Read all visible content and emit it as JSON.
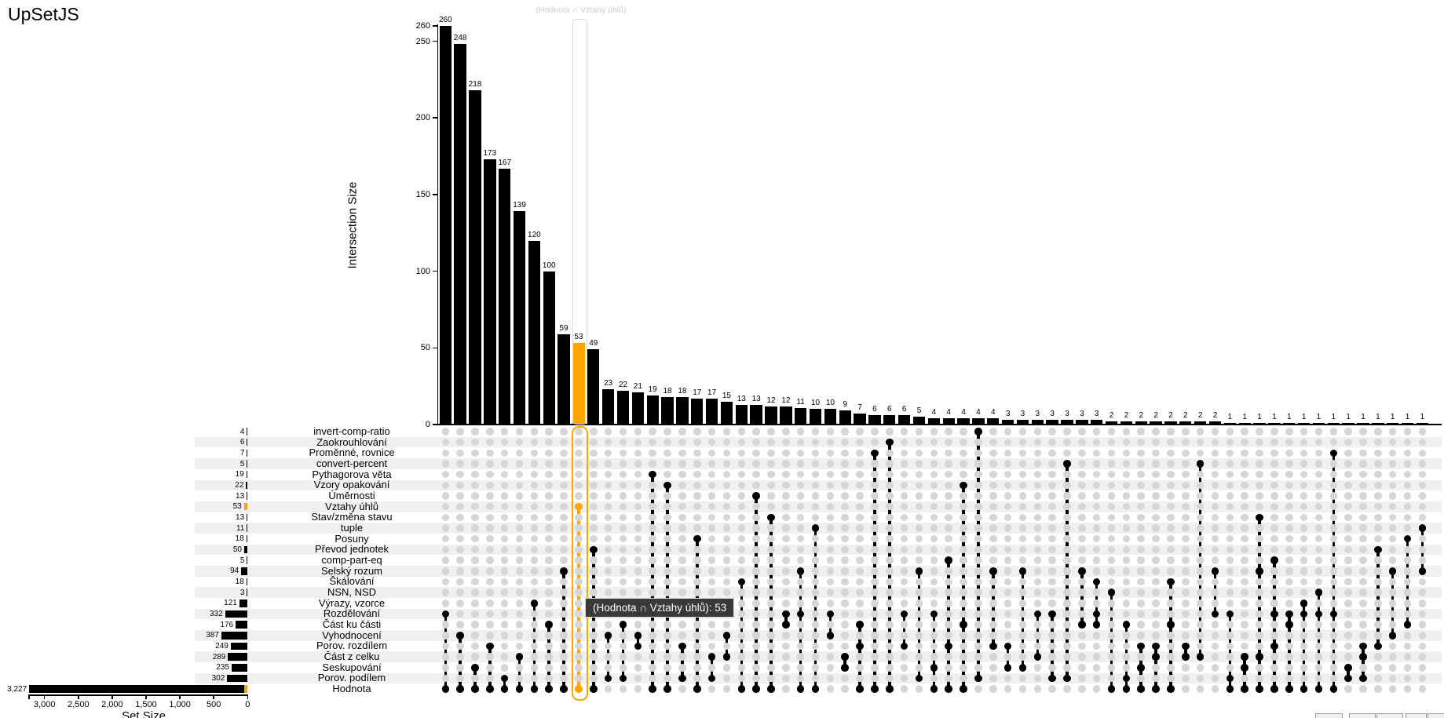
{
  "app": {
    "title": "UpSetJS"
  },
  "accent_color": "#ffa500",
  "bar_color": "#000000",
  "dot_color": "#d6d6d6",
  "chart_data": {
    "type": "upset",
    "hover_label": "(Hodnota ∩ Vztahy úhlů)",
    "tooltip": "(Hodnota ∩ Vztahy úhlů): 53",
    "intersection_axis": {
      "label": "Intersection Size",
      "ticks": [
        0,
        50,
        100,
        150,
        200,
        250,
        260
      ],
      "max": 260
    },
    "set_axis": {
      "label": "Set Size",
      "tick_labels": [
        "3,000",
        "2,500",
        "2,000",
        "1,500",
        "1,000",
        "500",
        "0"
      ],
      "tick_values": [
        3000,
        2500,
        2000,
        1500,
        1000,
        500,
        0
      ],
      "max": 3227
    },
    "sets": [
      {
        "name": "invert-comp-ratio",
        "size": 4,
        "label": "4"
      },
      {
        "name": "Zaokrouhlování",
        "size": 6,
        "label": "6"
      },
      {
        "name": "Proměnné, rovnice",
        "size": 7,
        "label": "7"
      },
      {
        "name": "convert-percent",
        "size": 5,
        "label": "5"
      },
      {
        "name": "Pythagorova věta",
        "size": 19,
        "label": "19"
      },
      {
        "name": "Vzory opakování",
        "size": 22,
        "label": "22"
      },
      {
        "name": "Úměrnosti",
        "size": 13,
        "label": "13"
      },
      {
        "name": "Vztahy úhlů",
        "size": 53,
        "label": "53",
        "selected": true,
        "selection_overlap": 53
      },
      {
        "name": "Stav/změna stavu",
        "size": 13,
        "label": "13"
      },
      {
        "name": "tuple",
        "size": 11,
        "label": "11"
      },
      {
        "name": "Posuny",
        "size": 18,
        "label": "18"
      },
      {
        "name": "Převod jednotek",
        "size": 50,
        "label": "50"
      },
      {
        "name": "comp-part-eq",
        "size": 5,
        "label": "5"
      },
      {
        "name": "Selský rozum",
        "size": 94,
        "label": "94"
      },
      {
        "name": "Škálování",
        "size": 18,
        "label": "18"
      },
      {
        "name": "NSN, NSD",
        "size": 3,
        "label": "3"
      },
      {
        "name": "Výrazy, vzorce",
        "size": 121,
        "label": "121"
      },
      {
        "name": "Rozdělování",
        "size": 332,
        "label": "332"
      },
      {
        "name": "Část ku části",
        "size": 176,
        "label": "176"
      },
      {
        "name": "Vyhodnocení",
        "size": 387,
        "label": "387"
      },
      {
        "name": "Porov. rozdílem",
        "size": 249,
        "label": "249"
      },
      {
        "name": "Část z celku",
        "size": 289,
        "label": "289"
      },
      {
        "name": "Seskupování",
        "size": 235,
        "label": "235"
      },
      {
        "name": "Porov. podílem",
        "size": 302,
        "label": "302"
      },
      {
        "name": "Hodnota",
        "size": 3227,
        "label": "3,227",
        "selection_overlap": 53
      }
    ],
    "intersections": [
      {
        "value": 260,
        "sets": [
          17,
          24
        ]
      },
      {
        "value": 248,
        "sets": [
          19,
          24
        ]
      },
      {
        "value": 218,
        "sets": [
          22,
          24
        ]
      },
      {
        "value": 173,
        "sets": [
          20,
          24
        ]
      },
      {
        "value": 167,
        "sets": [
          23,
          24
        ]
      },
      {
        "value": 139,
        "sets": [
          21,
          24
        ]
      },
      {
        "value": 120,
        "sets": [
          16,
          24
        ]
      },
      {
        "value": 100,
        "sets": [
          18,
          24
        ]
      },
      {
        "value": 59,
        "sets": [
          13,
          24
        ]
      },
      {
        "value": 53,
        "sets": [
          7,
          24
        ],
        "selected": true
      },
      {
        "value": 49,
        "sets": [
          11,
          24
        ]
      },
      {
        "value": 23,
        "sets": [
          19,
          23
        ]
      },
      {
        "value": 22,
        "sets": [
          18,
          23
        ]
      },
      {
        "value": 21,
        "sets": [
          19,
          20
        ]
      },
      {
        "value": 19,
        "sets": [
          4,
          24
        ]
      },
      {
        "value": 18,
        "sets": [
          5,
          24
        ]
      },
      {
        "value": 18,
        "sets": [
          20,
          23
        ]
      },
      {
        "value": 17,
        "sets": [
          10,
          24
        ]
      },
      {
        "value": 17,
        "sets": [
          21,
          23
        ]
      },
      {
        "value": 15,
        "sets": [
          19,
          21
        ]
      },
      {
        "value": 13,
        "sets": [
          14,
          24
        ]
      },
      {
        "value": 13,
        "sets": [
          6,
          24
        ]
      },
      {
        "value": 12,
        "sets": [
          8,
          24
        ]
      },
      {
        "value": 12,
        "sets": [
          17,
          18
        ]
      },
      {
        "value": 11,
        "sets": [
          13,
          17,
          24
        ]
      },
      {
        "value": 10,
        "sets": [
          9,
          24
        ]
      },
      {
        "value": 10,
        "sets": [
          17,
          19
        ]
      },
      {
        "value": 9,
        "sets": [
          21,
          22
        ]
      },
      {
        "value": 7,
        "sets": [
          18,
          20,
          24
        ]
      },
      {
        "value": 6,
        "sets": [
          2,
          24
        ]
      },
      {
        "value": 6,
        "sets": [
          1,
          24
        ]
      },
      {
        "value": 6,
        "sets": [
          17,
          20
        ]
      },
      {
        "value": 5,
        "sets": [
          13,
          23
        ]
      },
      {
        "value": 4,
        "sets": [
          17,
          22,
          24
        ]
      },
      {
        "value": 4,
        "sets": [
          12,
          20,
          24
        ]
      },
      {
        "value": 4,
        "sets": [
          5,
          18,
          24
        ]
      },
      {
        "value": 4,
        "sets": [
          0,
          23
        ]
      },
      {
        "value": 4,
        "sets": [
          13,
          20
        ]
      },
      {
        "value": 3,
        "sets": [
          20,
          22
        ]
      },
      {
        "value": 3,
        "sets": [
          13,
          22
        ]
      },
      {
        "value": 3,
        "sets": [
          17,
          21
        ]
      },
      {
        "value": 3,
        "sets": [
          17,
          23
        ]
      },
      {
        "value": 3,
        "sets": [
          3,
          23
        ]
      },
      {
        "value": 3,
        "sets": [
          13,
          18
        ]
      },
      {
        "value": 3,
        "sets": [
          14,
          17,
          18
        ]
      },
      {
        "value": 2,
        "sets": [
          15,
          24
        ]
      },
      {
        "value": 2,
        "sets": [
          18,
          23,
          24
        ]
      },
      {
        "value": 2,
        "sets": [
          20,
          22,
          24
        ]
      },
      {
        "value": 2,
        "sets": [
          20,
          21,
          24
        ]
      },
      {
        "value": 2,
        "sets": [
          14,
          18,
          24
        ]
      },
      {
        "value": 2,
        "sets": [
          20,
          21
        ]
      },
      {
        "value": 2,
        "sets": [
          3,
          21
        ]
      },
      {
        "value": 2,
        "sets": [
          13,
          17
        ]
      },
      {
        "value": 1,
        "sets": [
          17,
          23,
          24
        ]
      },
      {
        "value": 1,
        "sets": [
          21,
          22,
          24
        ]
      },
      {
        "value": 1,
        "sets": [
          8,
          13,
          21,
          24
        ]
      },
      {
        "value": 1,
        "sets": [
          12,
          17,
          20,
          24
        ]
      },
      {
        "value": 1,
        "sets": [
          17,
          18,
          24
        ]
      },
      {
        "value": 1,
        "sets": [
          16,
          17,
          24
        ]
      },
      {
        "value": 1,
        "sets": [
          15,
          17,
          24
        ]
      },
      {
        "value": 1,
        "sets": [
          2,
          17,
          24
        ]
      },
      {
        "value": 1,
        "sets": [
          22,
          23
        ]
      },
      {
        "value": 1,
        "sets": [
          20,
          21,
          23
        ]
      },
      {
        "value": 1,
        "sets": [
          11,
          20
        ]
      },
      {
        "value": 1,
        "sets": [
          13,
          19
        ]
      },
      {
        "value": 1,
        "sets": [
          10,
          18
        ]
      },
      {
        "value": 1,
        "sets": [
          9,
          13
        ]
      }
    ]
  },
  "export_buttons": {
    "count": 5
  }
}
